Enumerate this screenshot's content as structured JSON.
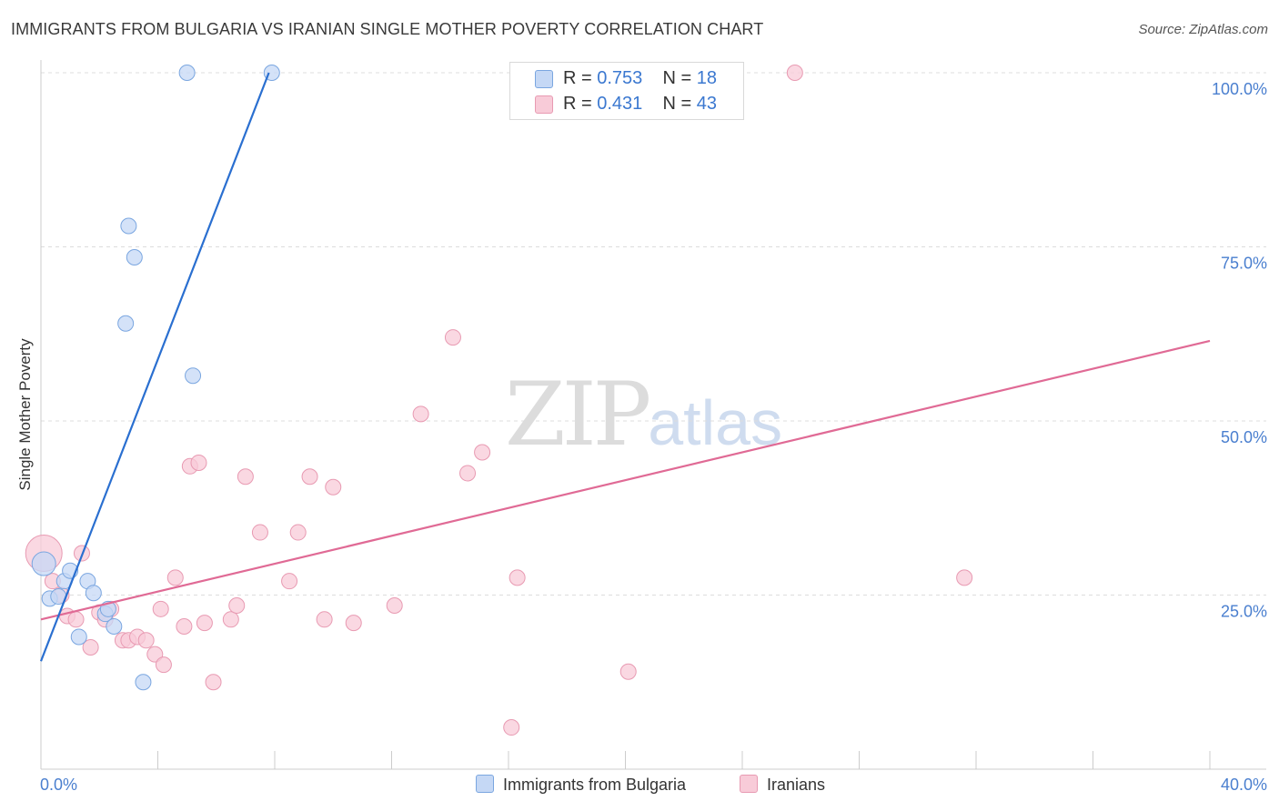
{
  "title": "IMMIGRANTS FROM BULGARIA VS IRANIAN SINGLE MOTHER POVERTY CORRELATION CHART",
  "source": "Source: ZipAtlas.com",
  "watermark": {
    "zip": "ZIP",
    "atlas": "atlas"
  },
  "legend_top": {
    "rows": [
      {
        "r_label": "R = ",
        "r_value": "0.753",
        "n_label": "N = ",
        "n_value": "18"
      },
      {
        "r_label": "R = ",
        "r_value": "0.431",
        "n_label": "N = ",
        "n_value": "43"
      }
    ]
  },
  "colors": {
    "blue_fill": "#c5d8f5",
    "blue_stroke": "#7aa6e0",
    "blue_line": "#2a6fd0",
    "pink_fill": "#f8cbd8",
    "pink_stroke": "#e89ab2",
    "pink_line": "#e06a95",
    "axis_label": "#4a7fcf",
    "grid": "#dddddd"
  },
  "chart_data": {
    "type": "scatter",
    "title": "IMMIGRANTS FROM BULGARIA VS IRANIAN SINGLE MOTHER POVERTY CORRELATION CHART",
    "xlabel": "",
    "ylabel": "Single Mother Poverty",
    "xlim": [
      0,
      40
    ],
    "ylim": [
      0,
      100
    ],
    "x_tick_labels": [
      "0.0%",
      "40.0%"
    ],
    "y_tick_labels": [
      "100.0%",
      "75.0%",
      "50.0%",
      "25.0%"
    ],
    "y_ticks": [
      100,
      75,
      50,
      25
    ],
    "grid": "horizontal dashed",
    "legend_position": "bottom",
    "series": [
      {
        "name": "Immigrants from Bulgaria",
        "color": "blue",
        "trend": [
          [
            0.0,
            15.5
          ],
          [
            7.8,
            100
          ]
        ],
        "points": [
          [
            0.1,
            29.5
          ],
          [
            0.3,
            24.5
          ],
          [
            0.6,
            24.8
          ],
          [
            0.8,
            27.0
          ],
          [
            1.0,
            28.5
          ],
          [
            1.3,
            19.0
          ],
          [
            1.6,
            27.0
          ],
          [
            1.8,
            25.3
          ],
          [
            2.2,
            22.3
          ],
          [
            2.3,
            23.0
          ],
          [
            2.5,
            20.5
          ],
          [
            2.9,
            64.0
          ],
          [
            3.0,
            78.0
          ],
          [
            3.2,
            73.5
          ],
          [
            3.5,
            12.5
          ],
          [
            5.0,
            100.0
          ],
          [
            5.2,
            56.5
          ],
          [
            7.9,
            100.0
          ]
        ]
      },
      {
        "name": "Iranians",
        "color": "pink",
        "trend": [
          [
            0.0,
            21.5
          ],
          [
            40.0,
            61.5
          ]
        ],
        "points": [
          [
            0.1,
            31.0
          ],
          [
            0.4,
            27.0
          ],
          [
            0.7,
            25.0
          ],
          [
            0.9,
            22.0
          ],
          [
            1.2,
            21.5
          ],
          [
            1.4,
            31.0
          ],
          [
            1.7,
            17.5
          ],
          [
            2.0,
            22.5
          ],
          [
            2.2,
            21.5
          ],
          [
            2.4,
            23.0
          ],
          [
            2.8,
            18.5
          ],
          [
            3.0,
            18.5
          ],
          [
            3.3,
            19.0
          ],
          [
            3.6,
            18.5
          ],
          [
            3.9,
            16.5
          ],
          [
            4.1,
            23.0
          ],
          [
            4.2,
            15.0
          ],
          [
            4.6,
            27.5
          ],
          [
            4.9,
            20.5
          ],
          [
            5.1,
            43.5
          ],
          [
            5.4,
            44.0
          ],
          [
            5.6,
            21.0
          ],
          [
            5.9,
            12.5
          ],
          [
            6.5,
            21.5
          ],
          [
            6.7,
            23.5
          ],
          [
            7.0,
            42.0
          ],
          [
            7.5,
            34.0
          ],
          [
            8.5,
            27.0
          ],
          [
            8.8,
            34.0
          ],
          [
            9.2,
            42.0
          ],
          [
            9.7,
            21.5
          ],
          [
            10.0,
            40.5
          ],
          [
            10.7,
            21.0
          ],
          [
            12.1,
            23.5
          ],
          [
            13.0,
            51.0
          ],
          [
            14.1,
            62.0
          ],
          [
            14.6,
            42.5
          ],
          [
            15.1,
            45.5
          ],
          [
            16.1,
            6.0
          ],
          [
            16.3,
            27.5
          ],
          [
            20.1,
            14.0
          ],
          [
            25.8,
            100.0
          ],
          [
            31.6,
            27.5
          ]
        ]
      }
    ]
  }
}
